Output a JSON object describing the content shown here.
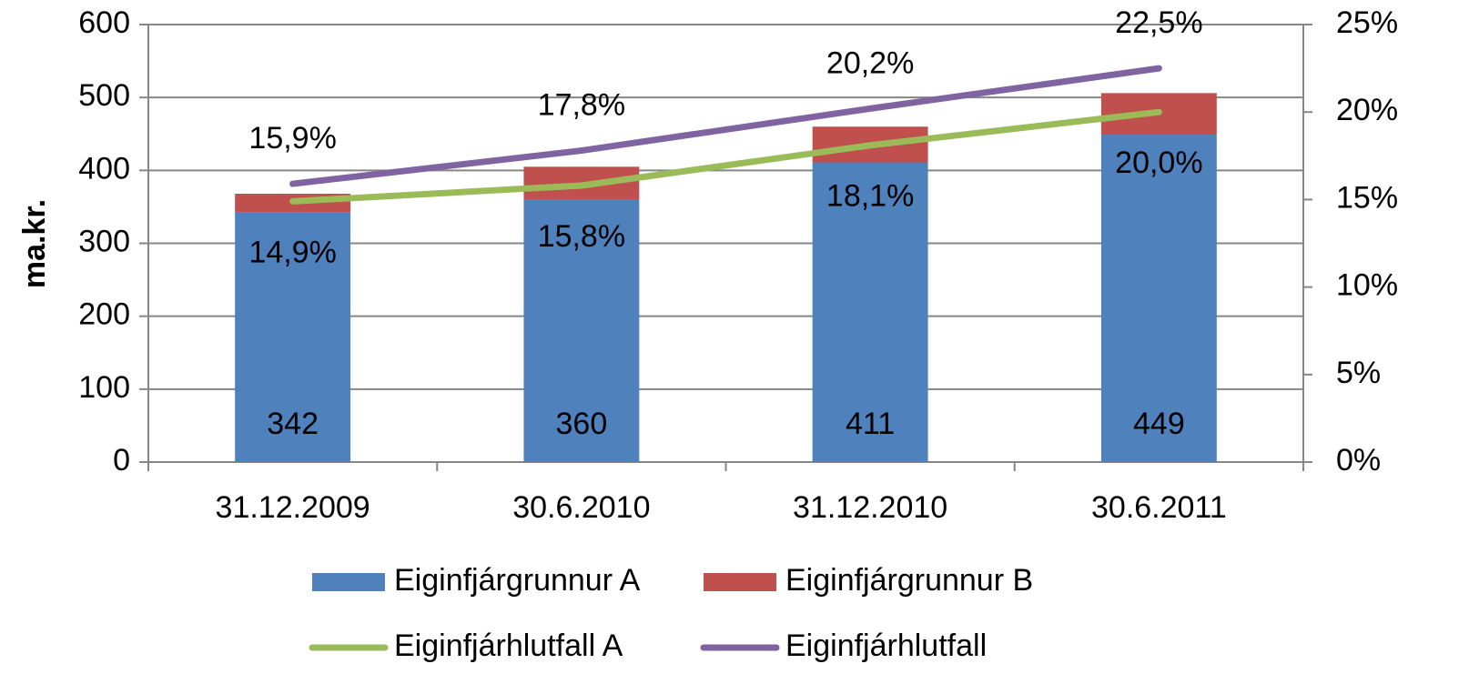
{
  "chart_data": {
    "type": "bar",
    "stacked": true,
    "ylabel": "ma.kr.",
    "categories": [
      "31.12.2009",
      "30.6.2010",
      "31.12.2010",
      "30.6.2011"
    ],
    "series": [
      {
        "name": "Eiginfjárgrunnur A",
        "type": "bar",
        "color": "#4f81bd",
        "values": [
          342,
          360,
          411,
          449
        ]
      },
      {
        "name": "Eiginfjárgrunnur B",
        "type": "bar",
        "color": "#c0504d",
        "values": [
          26,
          45,
          49,
          57
        ]
      },
      {
        "name": "Eiginfjárhlutfall A",
        "type": "line",
        "axis": "y2",
        "color": "#9bbb59",
        "values": [
          14.9,
          15.8,
          18.1,
          20.0
        ],
        "value_labels": [
          "14,9%",
          "15,8%",
          "18,1%",
          "20,0%"
        ]
      },
      {
        "name": "Eiginfjárhlutfall",
        "type": "line",
        "axis": "y2",
        "color": "#8064a2",
        "values": [
          15.9,
          17.8,
          20.2,
          22.5
        ],
        "value_labels": [
          "15,9%",
          "17,8%",
          "20,2%",
          "22,5%"
        ]
      }
    ],
    "ylim": [
      0,
      600
    ],
    "yticks": [
      0,
      100,
      200,
      300,
      400,
      500,
      600
    ],
    "y2lim": [
      0,
      25
    ],
    "y2ticks": [
      {
        "value": 0,
        "label": "0%"
      },
      {
        "value": 5,
        "label": "5%"
      },
      {
        "value": 10,
        "label": "10%"
      },
      {
        "value": 15,
        "label": "15%"
      },
      {
        "value": 20,
        "label": "20%"
      },
      {
        "value": 25,
        "label": "25%"
      }
    ],
    "grid": true,
    "legend": "bottom"
  }
}
